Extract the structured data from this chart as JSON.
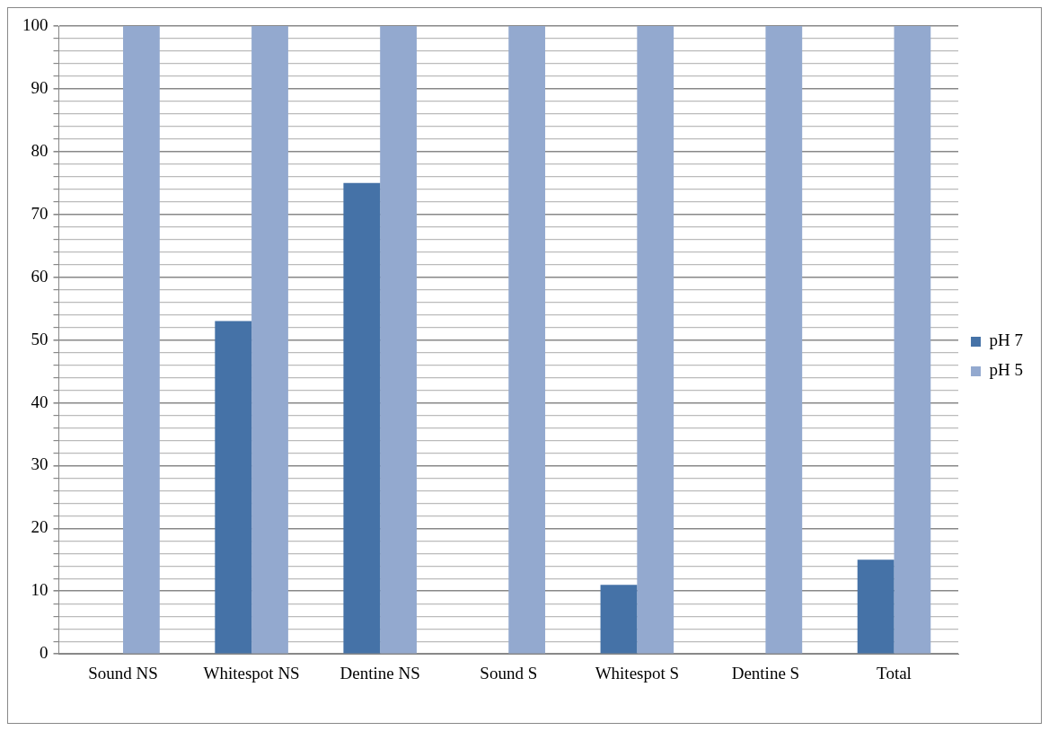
{
  "chart_data": {
    "type": "bar",
    "categories": [
      "Sound NS",
      "Whitespot NS",
      "Dentine NS",
      "Sound S",
      "Whitespot S",
      "Dentine S",
      "Total"
    ],
    "series": [
      {
        "name": "pH 7",
        "color": "#4572a7",
        "values": [
          0,
          53,
          75,
          0,
          11,
          0,
          15
        ]
      },
      {
        "name": "pH 5",
        "color": "#93a9cf",
        "values": [
          100,
          100,
          100,
          100,
          100,
          100,
          100
        ]
      }
    ],
    "ylim": [
      0,
      100
    ],
    "yticks": [
      0,
      {
        "value": 2,
        "label": null
      },
      {
        "value": 4,
        "label": null
      },
      {
        "value": 6,
        "label": null
      },
      {
        "value": 8,
        "label": null
      },
      10,
      {
        "value": 12,
        "label": null
      },
      {
        "value": 14,
        "label": null
      },
      {
        "value": 16,
        "label": null
      },
      {
        "value": 18,
        "label": null
      },
      20,
      {
        "value": 22,
        "label": null
      },
      {
        "value": 24,
        "label": null
      },
      {
        "value": 26,
        "label": null
      },
      {
        "value": 28,
        "label": null
      },
      30,
      {
        "value": 32,
        "label": null
      },
      {
        "value": 34,
        "label": null
      },
      {
        "value": 36,
        "label": null
      },
      {
        "value": 38,
        "label": null
      },
      40,
      {
        "value": 42,
        "label": null
      },
      {
        "value": 44,
        "label": null
      },
      {
        "value": 46,
        "label": null
      },
      {
        "value": 48,
        "label": null
      },
      50,
      {
        "value": 52,
        "label": null
      },
      {
        "value": 54,
        "label": null
      },
      {
        "value": 56,
        "label": null
      },
      {
        "value": 58,
        "label": null
      },
      60,
      {
        "value": 62,
        "label": null
      },
      {
        "value": 64,
        "label": null
      },
      {
        "value": 66,
        "label": null
      },
      {
        "value": 68,
        "label": null
      },
      70,
      {
        "value": 72,
        "label": null
      },
      {
        "value": 74,
        "label": null
      },
      {
        "value": 76,
        "label": null
      },
      {
        "value": 78,
        "label": null
      },
      80,
      {
        "value": 82,
        "label": null
      },
      {
        "value": 84,
        "label": null
      },
      {
        "value": 86,
        "label": null
      },
      {
        "value": 88,
        "label": null
      },
      90,
      {
        "value": 92,
        "label": null
      },
      {
        "value": 94,
        "label": null
      },
      {
        "value": 96,
        "label": null
      },
      {
        "value": 98,
        "label": null
      },
      100
    ],
    "grid": "y",
    "legend": "right"
  }
}
